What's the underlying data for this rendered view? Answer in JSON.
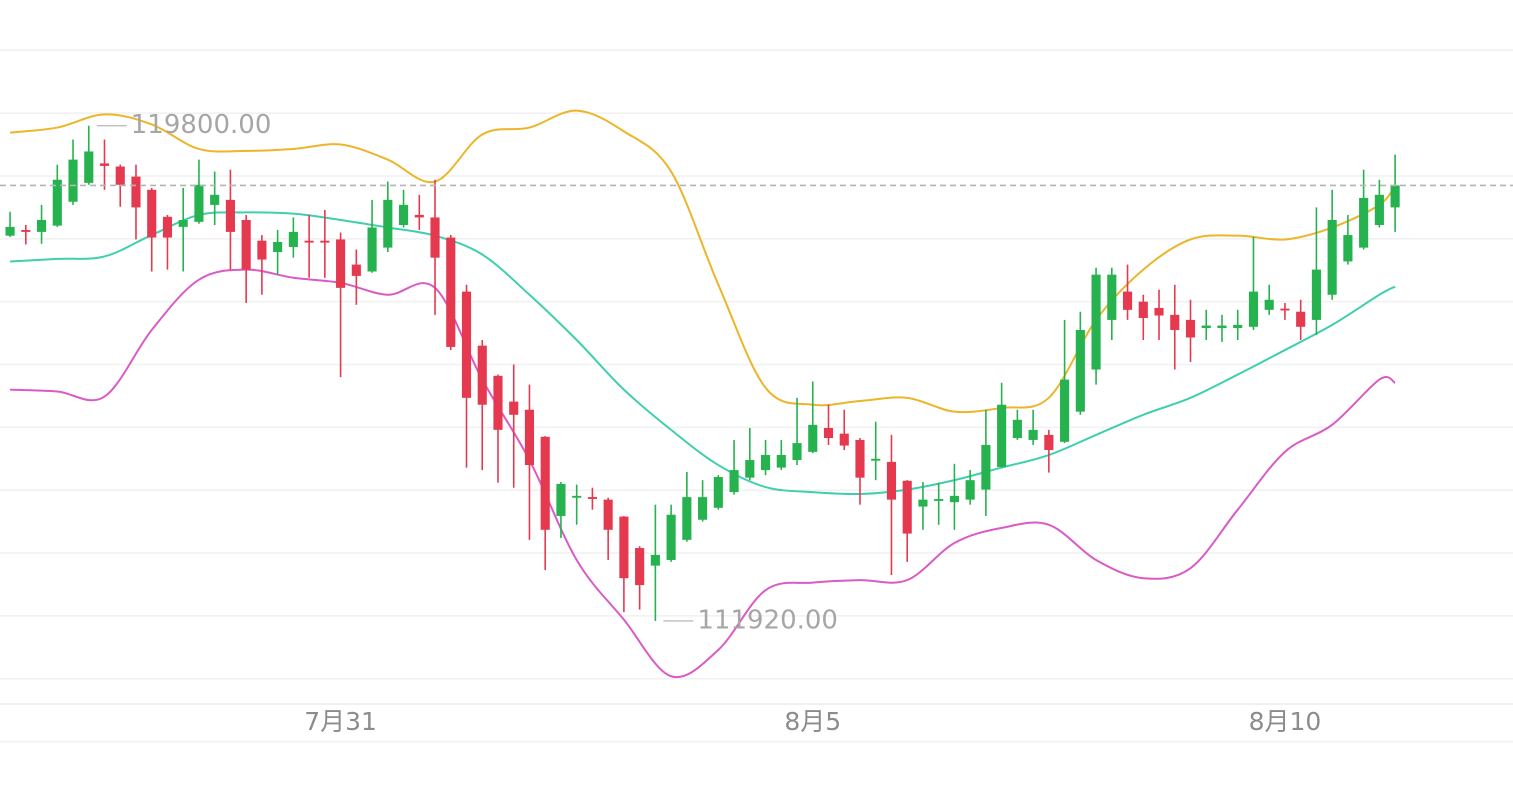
{
  "chart_data": {
    "type": "candlestick",
    "x": [
      0,
      1,
      2,
      3,
      4,
      5,
      6,
      7,
      8,
      9,
      10,
      11,
      12,
      13,
      14,
      15,
      16,
      17,
      18,
      19,
      20,
      21,
      22,
      23,
      24,
      25,
      26,
      27,
      28,
      29,
      30,
      31,
      32,
      33,
      34,
      35,
      36,
      37,
      38,
      39,
      40,
      41,
      42,
      43,
      44,
      45,
      46,
      47,
      48,
      49,
      50,
      51,
      52,
      53,
      54,
      55,
      56,
      57,
      58,
      59,
      60,
      61,
      62,
      63,
      64,
      65,
      66,
      67,
      68,
      69,
      70,
      71,
      72,
      73,
      74,
      75,
      76,
      77,
      78,
      79,
      80,
      81,
      82,
      83,
      84,
      85,
      86,
      87,
      88
    ],
    "open": [
      118050,
      118140,
      118110,
      118210,
      118590,
      118890,
      119200,
      119150,
      118990,
      118780,
      118350,
      118190,
      118270,
      118540,
      118620,
      118300,
      117970,
      117790,
      117870,
      117970,
      117970,
      117990,
      117590,
      117480,
      117860,
      118220,
      118380,
      118340,
      118020,
      117160,
      116300,
      115820,
      115410,
      115280,
      114850,
      113590,
      113880,
      113890,
      113850,
      113580,
      113080,
      112800,
      112890,
      113210,
      113530,
      113720,
      113970,
      114200,
      114320,
      114360,
      114480,
      114610,
      114990,
      114900,
      114800,
      114470,
      114450,
      114150,
      113740,
      113830,
      113810,
      113850,
      114010,
      114370,
      114830,
      114800,
      114880,
      114770,
      115250,
      115920,
      116710,
      117160,
      117000,
      116900,
      116790,
      116710,
      116580,
      116580,
      116580,
      116600,
      116870,
      116890,
      116840,
      116710,
      117110,
      117640,
      117860,
      118220,
      118500
    ],
    "high": [
      118430,
      118220,
      118540,
      119180,
      119580,
      119800,
      119580,
      119180,
      119180,
      118810,
      118380,
      118810,
      119260,
      119070,
      119100,
      118380,
      118060,
      118140,
      118340,
      118380,
      118460,
      118100,
      117830,
      118620,
      118910,
      118780,
      118700,
      118940,
      118060,
      117270,
      116390,
      115840,
      116000,
      115680,
      114860,
      114130,
      114090,
      114040,
      113880,
      113590,
      113110,
      113770,
      113770,
      114290,
      114160,
      114240,
      114800,
      114990,
      114800,
      114800,
      115470,
      115730,
      115360,
      115280,
      114830,
      115090,
      114880,
      114160,
      114130,
      114120,
      114420,
      114320,
      115280,
      115710,
      115280,
      115280,
      114960,
      116710,
      116840,
      117540,
      117540,
      117590,
      117110,
      117190,
      117270,
      117030,
      116870,
      116790,
      116870,
      118030,
      117270,
      116980,
      117030,
      118500,
      118780,
      118380,
      119100,
      118940,
      119340
    ],
    "low": [
      118030,
      117910,
      117920,
      118190,
      118540,
      118860,
      118780,
      118510,
      117990,
      117480,
      117510,
      117480,
      118240,
      118220,
      117510,
      116980,
      117110,
      117430,
      117700,
      117380,
      117380,
      115800,
      116950,
      117460,
      117790,
      118180,
      118140,
      116790,
      116230,
      114360,
      114320,
      114120,
      114040,
      113210,
      112730,
      113240,
      113450,
      113690,
      112890,
      112060,
      112100,
      111920,
      112860,
      113180,
      113500,
      113690,
      113930,
      114160,
      114240,
      114320,
      114400,
      114590,
      114720,
      114640,
      113770,
      114160,
      112650,
      112860,
      113370,
      113450,
      113370,
      113770,
      113590,
      114360,
      114800,
      114720,
      114280,
      114750,
      115200,
      115680,
      116390,
      116710,
      116390,
      116390,
      115920,
      116040,
      116390,
      116360,
      116390,
      116550,
      116790,
      116710,
      116390,
      116470,
      117030,
      117590,
      117830,
      118180,
      118110
    ],
    "close": [
      118190,
      118110,
      118300,
      118940,
      119260,
      119390,
      119160,
      118860,
      118500,
      118020,
      118020,
      118300,
      118860,
      118700,
      118110,
      117510,
      117670,
      117950,
      118110,
      117940,
      117940,
      117220,
      117410,
      118180,
      118620,
      118540,
      118340,
      117700,
      116280,
      115470,
      115360,
      114960,
      115200,
      114400,
      113370,
      114100,
      113910,
      113860,
      113370,
      112600,
      112490,
      112970,
      113610,
      113890,
      113890,
      114210,
      114320,
      114480,
      114560,
      114560,
      114750,
      115040,
      114830,
      114710,
      114200,
      114500,
      113850,
      113310,
      113850,
      113860,
      113910,
      114160,
      114720,
      115360,
      115120,
      114960,
      114640,
      115760,
      116550,
      117430,
      117430,
      116870,
      116740,
      116780,
      116550,
      116430,
      116620,
      116620,
      116630,
      117160,
      117030,
      116860,
      116600,
      117510,
      118300,
      118060,
      118650,
      118700,
      118850
    ],
    "up_color": "#26b24f",
    "down_color": "#e53950",
    "series": [
      {
        "color": "#ecb52a",
        "x": [
          0,
          3,
          6,
          9,
          12,
          15,
          18,
          21,
          24,
          27,
          30,
          33,
          36,
          39,
          42,
          45,
          48,
          51,
          54,
          57,
          60,
          63,
          66,
          69,
          72,
          75,
          78,
          81,
          84,
          87,
          88
        ],
        "values": [
          119690,
          119770,
          119980,
          119820,
          119430,
          119400,
          119430,
          119500,
          119260,
          118910,
          119660,
          119770,
          120040,
          119710,
          119070,
          117270,
          115630,
          115360,
          115420,
          115470,
          115250,
          115310,
          115470,
          116710,
          117510,
          117990,
          118050,
          117990,
          118180,
          118540,
          118850
        ]
      },
      {
        "color": "#3fcfae",
        "x": [
          0,
          3,
          6,
          9,
          12,
          15,
          18,
          21,
          24,
          27,
          30,
          33,
          36,
          39,
          42,
          45,
          48,
          51,
          54,
          57,
          60,
          63,
          66,
          69,
          72,
          75,
          78,
          81,
          84,
          87,
          88
        ],
        "values": [
          117640,
          117680,
          117720,
          118060,
          118380,
          118420,
          118400,
          118300,
          118180,
          118050,
          117750,
          117110,
          116390,
          115600,
          114960,
          114400,
          114050,
          113970,
          113940,
          114010,
          114160,
          114360,
          114560,
          114880,
          115200,
          115470,
          115840,
          116230,
          116630,
          117110,
          117240
        ]
      },
      {
        "color": "#d95bc5",
        "x": [
          0,
          3,
          6,
          9,
          12,
          15,
          18,
          21,
          24,
          27,
          30,
          33,
          36,
          39,
          42,
          45,
          48,
          51,
          54,
          57,
          60,
          63,
          66,
          69,
          72,
          75,
          78,
          81,
          84,
          87,
          88
        ],
        "values": [
          115600,
          115570,
          115490,
          116550,
          117350,
          117510,
          117380,
          117300,
          117110,
          117220,
          115760,
          114480,
          112890,
          111940,
          111040,
          111460,
          112410,
          112530,
          112570,
          112570,
          113160,
          113400,
          113450,
          112890,
          112600,
          112760,
          113690,
          114610,
          115040,
          115760,
          115710
        ]
      }
    ],
    "current_price": 118850,
    "annotations": [
      {
        "text": "119800.00",
        "value": 119800,
        "x": 5
      },
      {
        "text": "111920.00",
        "value": 111920,
        "x": 41
      }
    ],
    "xlim": [
      -0.64,
      95.49
    ],
    "ylim": [
      110000,
      121800
    ],
    "yticks": [
      110000,
      111000,
      112000,
      113000,
      114000,
      115000,
      116000,
      117000,
      118000,
      119000,
      120000,
      121000
    ],
    "xticks": [
      {
        "value": 21,
        "label": "7月31"
      },
      {
        "value": 51,
        "label": "8月5"
      },
      {
        "value": 81,
        "label": "8月10"
      }
    ],
    "grid": true
  }
}
